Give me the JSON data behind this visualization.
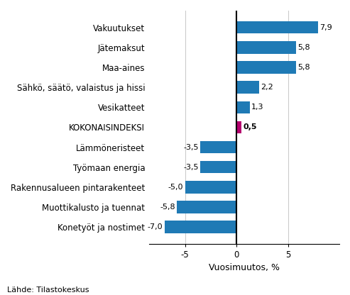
{
  "categories": [
    "Vakuutukset",
    "Jätemaksut",
    "Maa-aines",
    "Sähkö, säätö, valaistus ja hissi",
    "Vesikatteet",
    "KOKONAISINDEKSI",
    "Lämmöneristeet",
    "Työmaan energia",
    "Rakennusalueen pintarakenteet",
    "Muottikalusto ja tuennat",
    "Konetyöt ja nostimet"
  ],
  "values": [
    7.9,
    5.8,
    5.8,
    2.2,
    1.3,
    0.5,
    -3.5,
    -3.5,
    -5.0,
    -5.8,
    -7.0
  ],
  "bar_colors": [
    "#1f7ab5",
    "#1f7ab5",
    "#1f7ab5",
    "#1f7ab5",
    "#1f7ab5",
    "#b5006e",
    "#1f7ab5",
    "#1f7ab5",
    "#1f7ab5",
    "#1f7ab5",
    "#1f7ab5"
  ],
  "xlabel": "Vuosimuutos, %",
  "xlim": [
    -8.5,
    10.0
  ],
  "xticks": [
    -5,
    0,
    5
  ],
  "source": "Lähde: Tilastokeskus",
  "bar_height": 0.62,
  "value_fontsize": 8.0,
  "label_fontsize": 8.5,
  "grid_color": "#cccccc"
}
